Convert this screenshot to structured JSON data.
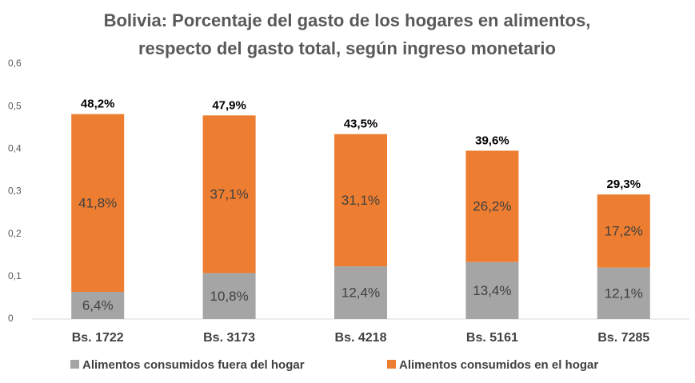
{
  "chart_data": {
    "type": "stacked_bar",
    "title": [
      "Bolivia: Porcentaje del gasto de los hogares en alimentos,",
      "respecto del gasto total, según ingreso monetario"
    ],
    "categories": [
      "Bs. 1722",
      "Bs. 3173",
      "Bs. 4218",
      "Bs. 5161",
      "Bs. 7285"
    ],
    "series": [
      {
        "name": "Alimentos consumidos fuera del hogar",
        "color": "#a5a5a5",
        "values": [
          0.064,
          0.108,
          0.124,
          0.134,
          0.121
        ],
        "value_labels": [
          "6,4%",
          "10,8%",
          "12,4%",
          "13,4%",
          "12,1%"
        ]
      },
      {
        "name": "Alimentos consumidos en el hogar",
        "color": "#ed7d31",
        "values": [
          0.418,
          0.371,
          0.311,
          0.262,
          0.172
        ],
        "value_labels": [
          "41,8%",
          "37,1%",
          "31,1%",
          "26,2%",
          "17,2%"
        ]
      }
    ],
    "totals": {
      "values": [
        0.482,
        0.479,
        0.435,
        0.396,
        0.293
      ],
      "value_labels": [
        "48,2%",
        "47,9%",
        "43,5%",
        "39,6%",
        "29,3%"
      ]
    },
    "ylim": [
      0,
      0.6
    ],
    "yticks": [
      0,
      {
        "value": 0.1,
        "label": "0,1"
      },
      {
        "value": 0.2,
        "label": "0,2"
      },
      {
        "value": 0.3,
        "label": "0,3"
      },
      {
        "value": 0.4,
        "label": "0,4"
      },
      {
        "value": 0.5,
        "label": "0,5"
      },
      {
        "value": 0.6,
        "label": "0,6"
      }
    ],
    "grid": false,
    "legend": "bottom"
  }
}
